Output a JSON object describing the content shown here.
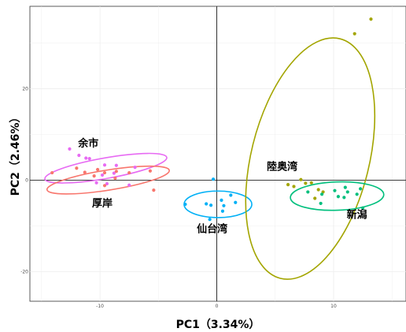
{
  "chart_data": {
    "type": "scatter",
    "xlabel": "PC1（3.34%）",
    "ylabel": "PC2（2.46%）",
    "xlim": [
      -16,
      16.2
    ],
    "ylim": [
      -26.5,
      38
    ],
    "x_ticks": [
      -10,
      0,
      10
    ],
    "y_ticks": [
      -20,
      0,
      20
    ],
    "grid": true,
    "series": [
      {
        "name": "余市",
        "color": "#e76bf3",
        "points": [
          [
            -12.6,
            6.8
          ],
          [
            -11.8,
            5.4
          ],
          [
            -11.2,
            4.8
          ],
          [
            -10.9,
            4.7
          ],
          [
            -9.6,
            3.3
          ],
          [
            -8.6,
            3.2
          ],
          [
            -7.0,
            2.8
          ],
          [
            -8.8,
            1.5
          ],
          [
            -9.8,
            1.1
          ],
          [
            -10.3,
            -0.6
          ],
          [
            -9.4,
            -0.8
          ],
          [
            -7.5,
            -1.1
          ]
        ],
        "ellipse": {
          "cx": -9.5,
          "cy": 2.6,
          "rx": 5.3,
          "ry": 2.25,
          "angle_deg": -10
        }
      },
      {
        "name": "厚岸",
        "color": "#f8766d",
        "points": [
          [
            -14.1,
            1.6
          ],
          [
            -12.0,
            2.6
          ],
          [
            -11.3,
            1.7
          ],
          [
            -10.2,
            2.3
          ],
          [
            -9.6,
            1.6
          ],
          [
            -8.6,
            1.9
          ],
          [
            -7.5,
            1.6
          ],
          [
            -5.7,
            2.0
          ],
          [
            -10.5,
            0.9
          ],
          [
            -8.7,
            0.4
          ],
          [
            -9.6,
            -1.2
          ],
          [
            -5.4,
            -2.2
          ]
        ],
        "ellipse": {
          "cx": -9.3,
          "cy": 0.0,
          "rx": 5.3,
          "ry": 2.2,
          "angle_deg": -9
        }
      },
      {
        "name": "仙台湾",
        "color": "#00b0f6",
        "points": [
          [
            -2.7,
            -5.3
          ],
          [
            -0.3,
            0.2
          ],
          [
            -0.9,
            -5.2
          ],
          [
            -0.5,
            -5.5
          ],
          [
            0.4,
            -4.4
          ],
          [
            0.6,
            -5.6
          ],
          [
            1.2,
            -3.3
          ],
          [
            1.6,
            -4.9
          ],
          [
            0.5,
            -6.8
          ],
          [
            -0.6,
            -8.6
          ]
        ],
        "ellipse": {
          "cx": 0.1,
          "cy": -5.3,
          "rx": 2.9,
          "ry": 2.9,
          "angle_deg": 0
        }
      },
      {
        "name": "陸奥湾",
        "color": "#a3a500",
        "points": [
          [
            13.2,
            35.2
          ],
          [
            11.8,
            32.0
          ],
          [
            7.2,
            0.1
          ],
          [
            7.6,
            -0.7
          ],
          [
            8.1,
            -0.6
          ],
          [
            6.1,
            -1.0
          ],
          [
            6.6,
            -1.4
          ],
          [
            8.7,
            -2.1
          ],
          [
            9.1,
            -2.6
          ],
          [
            8.4,
            -4.0
          ]
        ],
        "ellipse": {
          "cx": 8.0,
          "cy": 4.7,
          "rx": 5.05,
          "ry": 27.0,
          "angle_deg": 14
        }
      },
      {
        "name": "新潟",
        "color": "#00bf7d",
        "points": [
          [
            7.8,
            -2.6
          ],
          [
            9.0,
            -3.1
          ],
          [
            11.0,
            -1.6
          ],
          [
            11.2,
            -2.6
          ],
          [
            12.0,
            -3.1
          ],
          [
            12.3,
            -1.9
          ],
          [
            12.5,
            -6.1
          ],
          [
            10.9,
            -3.8
          ],
          [
            10.1,
            -2.3
          ],
          [
            10.4,
            -3.6
          ],
          [
            8.9,
            -5.1
          ]
        ],
        "ellipse": {
          "cx": 10.3,
          "cy": -3.5,
          "rx": 4.0,
          "ry": 3.1,
          "angle_deg": -2
        }
      }
    ],
    "annotations": [
      {
        "text": "余市",
        "x": -11.0,
        "y": 7.3
      },
      {
        "text": "厚岸",
        "x": -9.8,
        "y": -5.8
      },
      {
        "text": "仙台湾",
        "x": -0.4,
        "y": -11.4
      },
      {
        "text": "陸奥湾",
        "x": 5.6,
        "y": 2.2
      },
      {
        "text": "新潟",
        "x": 12.0,
        "y": -8.3
      }
    ]
  }
}
